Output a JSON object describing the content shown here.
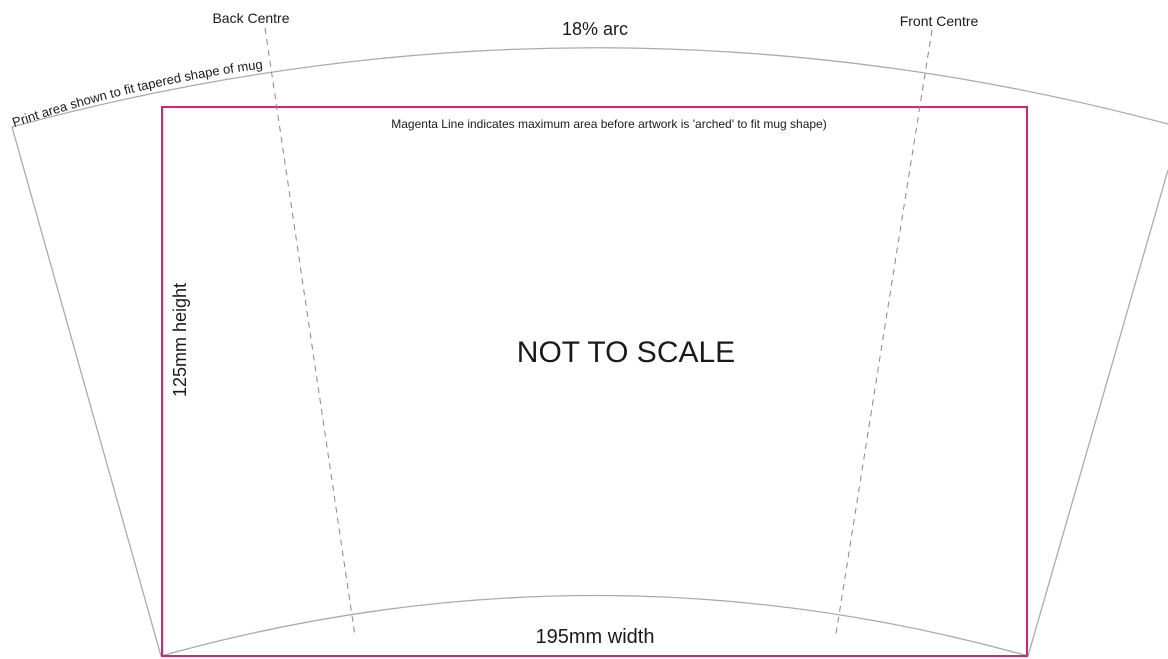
{
  "labels": {
    "back_centre": "Back Centre",
    "front_centre": "Front Centre",
    "arc": "18% arc",
    "print_area_note": "Print area shown to fit tapered shape of mug",
    "magenta_note": "Magenta Line indicates maximum area before artwork is 'arched' to fit mug shape)",
    "height": "125mm height",
    "scale_note": "NOT TO SCALE",
    "width": "195mm width"
  },
  "colors": {
    "outline": "#aaaaaa",
    "magenta": "#d4237a",
    "guide": "#888888",
    "text": "#1a1a1a"
  }
}
